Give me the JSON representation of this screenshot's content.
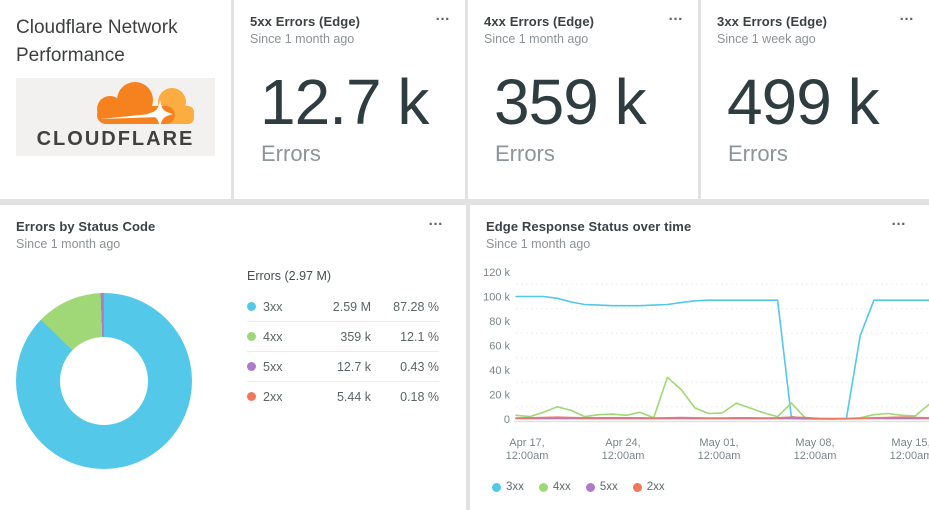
{
  "title_card": {
    "title_line1": "Cloudflare Network",
    "title_line2": "Performance",
    "logo_text": "CLOUDFLARE"
  },
  "billboards": [
    {
      "title": "5xx Errors (Edge)",
      "subtitle": "Since 1 month ago",
      "value": "12.7 k",
      "unit": "Errors",
      "menu_icon": "…"
    },
    {
      "title": "4xx Errors (Edge)",
      "subtitle": "Since 1 month ago",
      "value": "359 k",
      "unit": "Errors",
      "menu_icon": "…"
    },
    {
      "title": "3xx Errors (Edge)",
      "subtitle": "Since 1 week ago",
      "value": "499 k",
      "unit": "Errors",
      "menu_icon": "…"
    }
  ],
  "pie_card": {
    "title": "Errors by Status Code",
    "subtitle": "Since 1 month ago",
    "menu_icon": "…"
  },
  "line_card": {
    "title": "Edge Response Status over time",
    "subtitle": "Since 1 month ago",
    "menu_icon": "…"
  },
  "colors": {
    "status_3xx": "#53C8E8",
    "status_4xx": "#A0D878",
    "status_5xx": "#AE7BC8",
    "status_2xx": "#F0795B",
    "cloudflare_orange": "#F6821F",
    "cloudflare_light_orange": "#FBAD41"
  },
  "chart_data": [
    {
      "type": "pie",
      "title": "Errors by Status Code",
      "total_label": "Errors (2.97 M)",
      "donut": true,
      "series": [
        {
          "name": "3xx",
          "value": 2590000,
          "value_label": "2.59 M",
          "pct": 87.28,
          "pct_label": "87.28 %",
          "color": "#53C8E8"
        },
        {
          "name": "4xx",
          "value": 359000,
          "value_label": "359 k",
          "pct": 12.1,
          "pct_label": "12.1 %",
          "color": "#A0D878"
        },
        {
          "name": "5xx",
          "value": 12700,
          "value_label": "12.7 k",
          "pct": 0.43,
          "pct_label": "0.43 %",
          "color": "#AE7BC8"
        },
        {
          "name": "2xx",
          "value": 5440,
          "value_label": "5.44 k",
          "pct": 0.18,
          "pct_label": "0.18 %",
          "color": "#F0795B"
        }
      ]
    },
    {
      "type": "line",
      "title": "Edge Response Status over time",
      "ylim_k": [
        0,
        120
      ],
      "ytick_k": [
        0,
        20,
        40,
        60,
        80,
        100,
        120
      ],
      "ytick_labels": [
        "0",
        "20 k",
        "40 k",
        "60 k",
        "80 k",
        "100 k",
        "120 k"
      ],
      "minor_grid_k": [
        10,
        30,
        50,
        70,
        90,
        110
      ],
      "xtick_labels": [
        [
          "Apr 17,",
          "12:00am"
        ],
        [
          "Apr 24,",
          "12:00am"
        ],
        [
          "May 01,",
          "12:00am"
        ],
        [
          "May 08,",
          "12:00am"
        ],
        [
          "May 15,",
          "12:00am"
        ]
      ],
      "legend": [
        {
          "name": "3xx",
          "color": "#53C8E8"
        },
        {
          "name": "4xx",
          "color": "#A0D878"
        },
        {
          "name": "5xx",
          "color": "#AE7BC8"
        },
        {
          "name": "2xx",
          "color": "#F0795B"
        }
      ],
      "series": [
        {
          "name": "3xx",
          "color": "#53C8E8",
          "values_k": [
            100,
            100,
            100,
            98.5,
            95.5,
            93.5,
            93,
            92.5,
            92.5,
            92.5,
            93,
            93.5,
            95,
            96.5,
            97,
            97,
            97,
            97,
            97,
            97,
            2,
            0.4,
            0.3,
            0.2,
            0.3,
            68,
            97,
            97,
            97,
            97,
            97
          ]
        },
        {
          "name": "4xx",
          "color": "#A0D878",
          "values_k": [
            3,
            2,
            5.5,
            10,
            7,
            2,
            3.5,
            4,
            3,
            5.5,
            1,
            34,
            24,
            9,
            4.5,
            5,
            13,
            9,
            5,
            2,
            13,
            1,
            0.3,
            0.2,
            0.3,
            1,
            3.5,
            4.5,
            3,
            2.5,
            12
          ]
        },
        {
          "name": "5xx",
          "color": "#AE7BC8",
          "values_k": [
            0.3,
            0.3,
            0.3,
            0.3,
            0.3,
            0.3,
            0.3,
            0.3,
            0.3,
            0.3,
            0.3,
            0.3,
            0.3,
            0.3,
            0.3,
            0.3,
            0.3,
            0.3,
            0.3,
            0.3,
            0.3,
            0.2,
            0.1,
            0.1,
            0.2,
            0.6,
            0.5,
            0.3,
            0.3,
            0.3,
            0.3
          ]
        },
        {
          "name": "2xx",
          "color": "#F0795B",
          "values_k": [
            0.8,
            1,
            1.2,
            1.5,
            1.2,
            1,
            1,
            1,
            1,
            1,
            0.8,
            1,
            1.2,
            1,
            0.8,
            0.8,
            1,
            1,
            0.8,
            1,
            1.5,
            1.2,
            0.5,
            0.3,
            0.3,
            0.5,
            1,
            1.2,
            1.5,
            1.2,
            1
          ]
        }
      ]
    }
  ]
}
